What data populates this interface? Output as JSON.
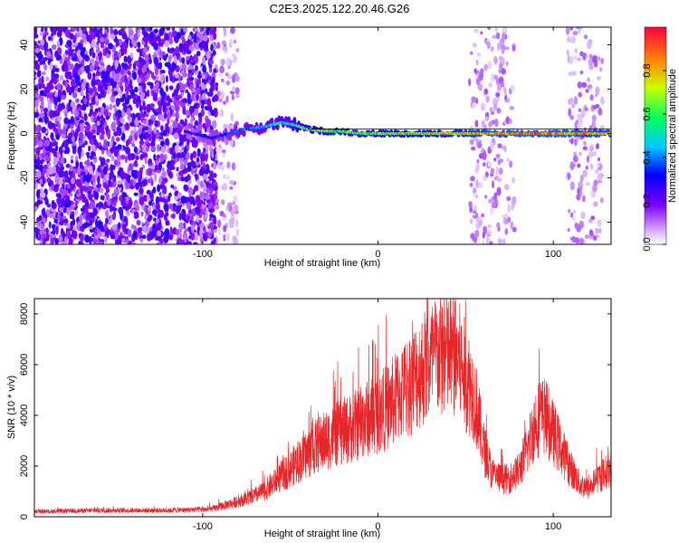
{
  "title": "C2E3.2025.122.20.46.G26",
  "colors": {
    "specgram_noise": "#8a2be2",
    "snr_line": "#e8262a",
    "axis": "#000000"
  },
  "chart_data": [
    {
      "type": "heatmap",
      "xlabel": "Height of straight line (km)",
      "ylabel": "Frequency (Hz)",
      "xlim": [
        -196,
        133
      ],
      "ylim": [
        -50,
        48
      ],
      "x_ticks": [
        "-100",
        "0",
        "100"
      ],
      "x_tick_values": [
        -100,
        0,
        100
      ],
      "y_ticks": [
        "40",
        "20",
        "0",
        "-20",
        "-40"
      ],
      "y_tick_values": [
        40,
        20,
        0,
        -20,
        -40
      ],
      "colorbar": {
        "label": "Normalized spectral amplitude",
        "ticks": [
          "0.0",
          "0.2",
          "0.4",
          "0.6",
          "0.8"
        ],
        "tick_values": [
          0.0,
          0.2,
          0.4,
          0.6,
          0.8
        ],
        "range": [
          0,
          1
        ]
      },
      "signal_track": {
        "x": [
          -110,
          -95,
          -85,
          -75,
          -65,
          -55,
          -48,
          -40,
          -30,
          -20,
          -10,
          0,
          20,
          40,
          60,
          80,
          100,
          120,
          133
        ],
        "y": [
          1,
          -2,
          0,
          2,
          3,
          5,
          4,
          2,
          1,
          1,
          0,
          0,
          0,
          0,
          0,
          0,
          0,
          0,
          0
        ],
        "amplitude": [
          0.25,
          0.3,
          0.35,
          0.4,
          0.45,
          0.5,
          0.55,
          0.7,
          0.65,
          0.6,
          0.6,
          0.65,
          0.7,
          0.75,
          0.8,
          0.85,
          0.85,
          0.8,
          0.8
        ]
      },
      "noise_regions": [
        [
          -196,
          -92
        ],
        [
          -92,
          -80
        ],
        [
          52,
          78
        ],
        [
          108,
          128
        ]
      ]
    },
    {
      "type": "line",
      "xlabel": "Height of straight line (km)",
      "ylabel": "SNR (10 * v/v)",
      "xlim": [
        -196,
        133
      ],
      "ylim": [
        0,
        8600
      ],
      "x_ticks": [
        "-100",
        "0",
        "100"
      ],
      "x_tick_values": [
        -100,
        0,
        100
      ],
      "y_ticks": [
        "0",
        "2000",
        "4000",
        "6000",
        "8000"
      ],
      "y_tick_values": [
        0,
        2000,
        4000,
        6000,
        8000
      ],
      "x": [
        -196,
        -160,
        -120,
        -95,
        -85,
        -75,
        -65,
        -55,
        -45,
        -35,
        -25,
        -15,
        -5,
        5,
        15,
        25,
        35,
        45,
        55,
        60,
        65,
        70,
        75,
        80,
        85,
        90,
        95,
        100,
        105,
        110,
        115,
        120,
        125,
        133
      ],
      "values": [
        200,
        250,
        250,
        300,
        500,
        700,
        1000,
        1600,
        2200,
        2800,
        3200,
        3500,
        3900,
        4300,
        5000,
        5800,
        6400,
        6300,
        4800,
        2800,
        1700,
        1500,
        1500,
        1800,
        2600,
        3800,
        4000,
        3300,
        2600,
        1900,
        1300,
        1100,
        1500,
        1900
      ]
    }
  ]
}
